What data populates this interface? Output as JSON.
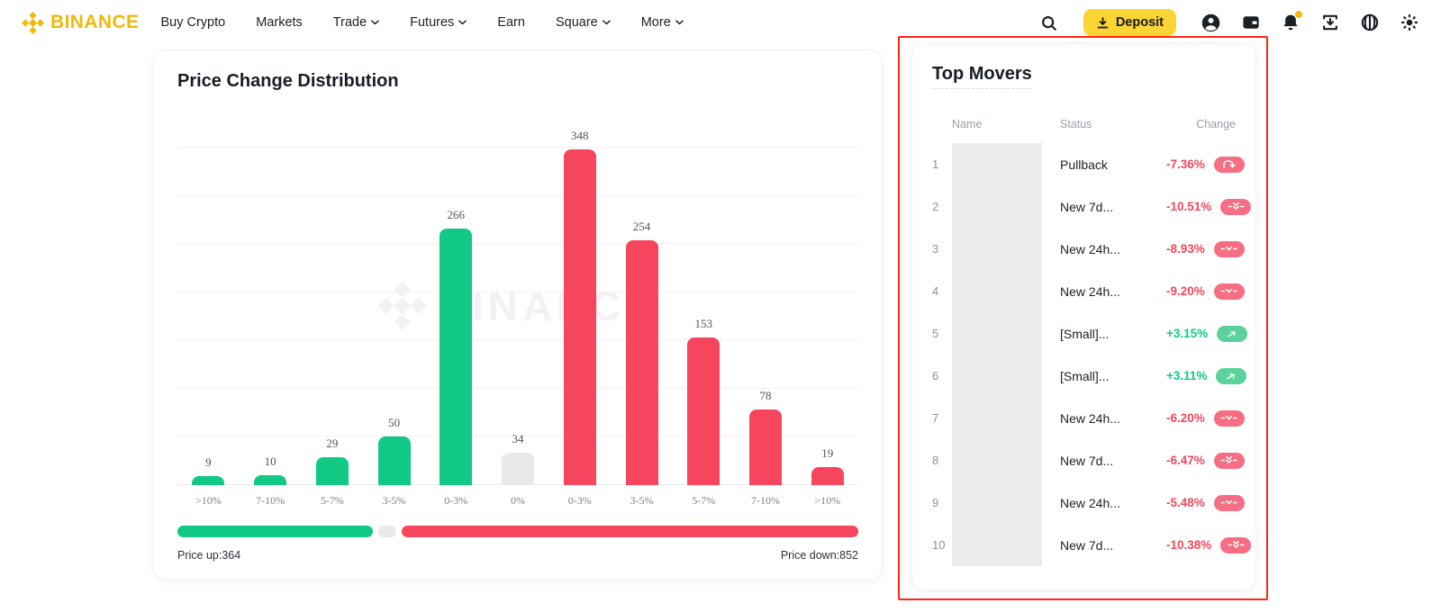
{
  "header": {
    "brand": "BINANCE",
    "nav": [
      {
        "label": "Buy Crypto",
        "dropdown": false
      },
      {
        "label": "Markets",
        "dropdown": false
      },
      {
        "label": "Trade",
        "dropdown": true
      },
      {
        "label": "Futures",
        "dropdown": true
      },
      {
        "label": "Earn",
        "dropdown": false
      },
      {
        "label": "Square",
        "dropdown": true
      },
      {
        "label": "More",
        "dropdown": true
      }
    ],
    "deposit_label": "Deposit",
    "icons": [
      "binance-logo-icon",
      "search-icon",
      "deposit-download-icon",
      "user-icon",
      "wallet-icon",
      "bell-icon",
      "app-download-icon",
      "globe-icon",
      "theme-icon"
    ],
    "colors": {
      "brand_gold": "#F0B90B",
      "deposit_bg": "#FCD535"
    }
  },
  "chart_card": {
    "watermark": "BINANCE",
    "footer": {
      "up_label": "Price up:364",
      "down_label": "Price down:852"
    }
  },
  "chart_data": {
    "type": "bar",
    "title": "Price Change Distribution",
    "categories": [
      ">10%",
      "7-10%",
      "5-7%",
      "3-5%",
      "0-3%",
      "0%",
      "0-3%",
      "3-5%",
      "5-7%",
      "7-10%",
      ">10%"
    ],
    "values": [
      9,
      10,
      29,
      50,
      266,
      34,
      348,
      254,
      153,
      78,
      19
    ],
    "bar_colors": [
      "green",
      "green",
      "green",
      "green",
      "green",
      "neutral",
      "red",
      "red",
      "red",
      "red",
      "red"
    ],
    "ylim": [
      0,
      350
    ],
    "grid_step": 50,
    "grid": true,
    "xlabel": "",
    "ylabel": "",
    "legend_position": "none",
    "price_up_total": 364,
    "neutral_total": 34,
    "price_down_total": 852,
    "colors": {
      "green": "#11c985",
      "neutral": "#e9e9eb",
      "red": "#f6465d"
    }
  },
  "movers": {
    "title": "Top Movers",
    "columns": [
      "Name",
      "Status",
      "Change"
    ],
    "rows": [
      {
        "rank": "1",
        "status": "Pullback",
        "change": "-7.36%",
        "direction": "down",
        "badge": "pullback-arrow-icon"
      },
      {
        "rank": "2",
        "status": "New 7d...",
        "change": "-10.51%",
        "direction": "down",
        "badge": "double-chevron-down-icon"
      },
      {
        "rank": "3",
        "status": "New 24h...",
        "change": "-8.93%",
        "direction": "down",
        "badge": "chevron-down-icon"
      },
      {
        "rank": "4",
        "status": "New 24h...",
        "change": "-9.20%",
        "direction": "down",
        "badge": "chevron-down-icon"
      },
      {
        "rank": "5",
        "status": "[Small]...",
        "change": "+3.15%",
        "direction": "up",
        "badge": "arrow-up-right-icon"
      },
      {
        "rank": "6",
        "status": "[Small]...",
        "change": "+3.11%",
        "direction": "up",
        "badge": "arrow-up-right-icon"
      },
      {
        "rank": "7",
        "status": "New 24h...",
        "change": "-6.20%",
        "direction": "down",
        "badge": "chevron-down-icon"
      },
      {
        "rank": "8",
        "status": "New 7d...",
        "change": "-6.47%",
        "direction": "down",
        "badge": "double-chevron-down-icon"
      },
      {
        "rank": "9",
        "status": "New 24h...",
        "change": "-5.48%",
        "direction": "down",
        "badge": "chevron-down-icon"
      },
      {
        "rank": "10",
        "status": "New 7d...",
        "change": "-10.38%",
        "direction": "down",
        "badge": "double-chevron-down-icon"
      }
    ],
    "colors": {
      "down_text": "#f6465d",
      "up_text": "#0ecb81",
      "badge_down_bg": "#f56e83",
      "badge_up_bg": "#5bd29b"
    },
    "highlight_border": "#fe2615"
  }
}
